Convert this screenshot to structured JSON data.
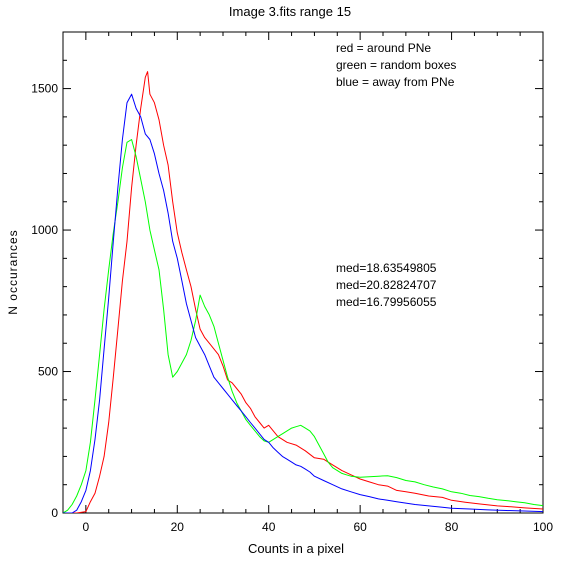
{
  "chart_data": {
    "type": "line",
    "title": "Image 3.fits   range 15",
    "xlabel": "Counts in a pixel",
    "ylabel": "N occurances",
    "xlim": [
      -5,
      100
    ],
    "ylim": [
      0,
      1700
    ],
    "xticks": [
      0,
      20,
      40,
      60,
      80,
      100
    ],
    "yticks": [
      0,
      500,
      1000,
      1500
    ],
    "grid": false,
    "legend_position": "top-right",
    "legend": [
      {
        "label": "red = around PNe",
        "color": "#ff0000"
      },
      {
        "label": "green = random boxes",
        "color": "#00ff00"
      },
      {
        "label": "blue = away from PNe",
        "color": "#0000ff"
      }
    ],
    "annotations": [
      {
        "text": "med=18.63549805",
        "color": "#ff0000"
      },
      {
        "text": "med=20.82824707",
        "color": "#00ff00"
      },
      {
        "text": "med=16.79956055",
        "color": "#0000ff"
      }
    ],
    "series": [
      {
        "color": "#ff0000",
        "points": [
          [
            -5,
            0
          ],
          [
            -2,
            0
          ],
          [
            0,
            5
          ],
          [
            1,
            40
          ],
          [
            2,
            70
          ],
          [
            3,
            130
          ],
          [
            4,
            200
          ],
          [
            5,
            320
          ],
          [
            6,
            480
          ],
          [
            7,
            650
          ],
          [
            8,
            820
          ],
          [
            9,
            960
          ],
          [
            10,
            1150
          ],
          [
            11,
            1300
          ],
          [
            12,
            1430
          ],
          [
            13,
            1540
          ],
          [
            13.5,
            1560
          ],
          [
            14,
            1480
          ],
          [
            15,
            1450
          ],
          [
            16,
            1390
          ],
          [
            17,
            1300
          ],
          [
            18,
            1230
          ],
          [
            19,
            1100
          ],
          [
            20,
            990
          ],
          [
            21,
            920
          ],
          [
            22,
            860
          ],
          [
            23,
            800
          ],
          [
            24,
            720
          ],
          [
            25,
            650
          ],
          [
            26,
            620
          ],
          [
            27,
            600
          ],
          [
            28,
            580
          ],
          [
            29,
            560
          ],
          [
            30,
            520
          ],
          [
            31,
            470
          ],
          [
            32,
            460
          ],
          [
            33,
            440
          ],
          [
            34,
            420
          ],
          [
            35,
            390
          ],
          [
            36,
            370
          ],
          [
            37,
            340
          ],
          [
            38,
            320
          ],
          [
            39,
            300
          ],
          [
            40,
            310
          ],
          [
            41,
            290
          ],
          [
            42,
            270
          ],
          [
            44,
            250
          ],
          [
            46,
            240
          ],
          [
            48,
            220
          ],
          [
            50,
            195
          ],
          [
            52,
            190
          ],
          [
            54,
            170
          ],
          [
            56,
            150
          ],
          [
            58,
            135
          ],
          [
            60,
            120
          ],
          [
            62,
            110
          ],
          [
            64,
            100
          ],
          [
            66,
            95
          ],
          [
            68,
            80
          ],
          [
            70,
            75
          ],
          [
            72,
            70
          ],
          [
            75,
            60
          ],
          [
            78,
            55
          ],
          [
            80,
            45
          ],
          [
            83,
            38
          ],
          [
            86,
            32
          ],
          [
            90,
            25
          ],
          [
            93,
            22
          ],
          [
            96,
            18
          ],
          [
            100,
            14
          ]
        ]
      },
      {
        "color": "#00ff00",
        "points": [
          [
            -5,
            0
          ],
          [
            -4,
            10
          ],
          [
            -3,
            30
          ],
          [
            -2,
            60
          ],
          [
            -1,
            100
          ],
          [
            0,
            150
          ],
          [
            1,
            250
          ],
          [
            2,
            400
          ],
          [
            3,
            560
          ],
          [
            4,
            720
          ],
          [
            5,
            860
          ],
          [
            6,
            990
          ],
          [
            7,
            1100
          ],
          [
            8,
            1220
          ],
          [
            9,
            1310
          ],
          [
            10,
            1320
          ],
          [
            11,
            1260
          ],
          [
            12,
            1180
          ],
          [
            13,
            1100
          ],
          [
            14,
            1000
          ],
          [
            15,
            930
          ],
          [
            16,
            860
          ],
          [
            17,
            720
          ],
          [
            18,
            560
          ],
          [
            19,
            480
          ],
          [
            20,
            500
          ],
          [
            21,
            530
          ],
          [
            22,
            560
          ],
          [
            23,
            610
          ],
          [
            24,
            680
          ],
          [
            25,
            770
          ],
          [
            26,
            730
          ],
          [
            27,
            700
          ],
          [
            28,
            660
          ],
          [
            29,
            600
          ],
          [
            30,
            540
          ],
          [
            31,
            480
          ],
          [
            32,
            430
          ],
          [
            33,
            390
          ],
          [
            34,
            360
          ],
          [
            35,
            330
          ],
          [
            36,
            310
          ],
          [
            37,
            290
          ],
          [
            38,
            270
          ],
          [
            39,
            255
          ],
          [
            40,
            250
          ],
          [
            41,
            260
          ],
          [
            42,
            270
          ],
          [
            43,
            280
          ],
          [
            44,
            290
          ],
          [
            45,
            300
          ],
          [
            46,
            305
          ],
          [
            47,
            310
          ],
          [
            48,
            300
          ],
          [
            49,
            290
          ],
          [
            50,
            270
          ],
          [
            51,
            240
          ],
          [
            52,
            210
          ],
          [
            53,
            180
          ],
          [
            54,
            160
          ],
          [
            55,
            150
          ],
          [
            56,
            140
          ],
          [
            57,
            135
          ],
          [
            58,
            130
          ],
          [
            59,
            128
          ],
          [
            60,
            126
          ],
          [
            62,
            128
          ],
          [
            64,
            130
          ],
          [
            66,
            132
          ],
          [
            68,
            125
          ],
          [
            70,
            115
          ],
          [
            72,
            110
          ],
          [
            74,
            100
          ],
          [
            76,
            92
          ],
          [
            78,
            85
          ],
          [
            80,
            75
          ],
          [
            82,
            70
          ],
          [
            84,
            62
          ],
          [
            86,
            58
          ],
          [
            88,
            52
          ],
          [
            90,
            47
          ],
          [
            92,
            44
          ],
          [
            94,
            40
          ],
          [
            96,
            36
          ],
          [
            98,
            30
          ],
          [
            100,
            26
          ]
        ]
      },
      {
        "color": "#0000ff",
        "points": [
          [
            -5,
            0
          ],
          [
            -3,
            0
          ],
          [
            -2,
            10
          ],
          [
            -1,
            40
          ],
          [
            0,
            80
          ],
          [
            1,
            150
          ],
          [
            2,
            260
          ],
          [
            3,
            400
          ],
          [
            4,
            580
          ],
          [
            5,
            760
          ],
          [
            6,
            960
          ],
          [
            7,
            1150
          ],
          [
            8,
            1320
          ],
          [
            9,
            1450
          ],
          [
            10,
            1480
          ],
          [
            11,
            1430
          ],
          [
            12,
            1400
          ],
          [
            13,
            1340
          ],
          [
            14,
            1320
          ],
          [
            15,
            1270
          ],
          [
            16,
            1200
          ],
          [
            17,
            1140
          ],
          [
            18,
            1060
          ],
          [
            19,
            960
          ],
          [
            20,
            900
          ],
          [
            21,
            820
          ],
          [
            22,
            740
          ],
          [
            23,
            680
          ],
          [
            24,
            620
          ],
          [
            25,
            590
          ],
          [
            26,
            560
          ],
          [
            27,
            520
          ],
          [
            28,
            480
          ],
          [
            29,
            460
          ],
          [
            30,
            440
          ],
          [
            31,
            420
          ],
          [
            32,
            400
          ],
          [
            33,
            380
          ],
          [
            34,
            360
          ],
          [
            35,
            340
          ],
          [
            36,
            320
          ],
          [
            37,
            300
          ],
          [
            38,
            280
          ],
          [
            39,
            260
          ],
          [
            40,
            250
          ],
          [
            41,
            230
          ],
          [
            42,
            215
          ],
          [
            43,
            200
          ],
          [
            44,
            190
          ],
          [
            45,
            180
          ],
          [
            46,
            170
          ],
          [
            47,
            165
          ],
          [
            48,
            155
          ],
          [
            49,
            145
          ],
          [
            50,
            130
          ],
          [
            52,
            115
          ],
          [
            54,
            100
          ],
          [
            56,
            85
          ],
          [
            58,
            75
          ],
          [
            60,
            65
          ],
          [
            62,
            58
          ],
          [
            64,
            50
          ],
          [
            66,
            45
          ],
          [
            68,
            40
          ],
          [
            70,
            35
          ],
          [
            72,
            30
          ],
          [
            75,
            25
          ],
          [
            78,
            20
          ],
          [
            80,
            17
          ],
          [
            84,
            14
          ],
          [
            88,
            11
          ],
          [
            92,
            9
          ],
          [
            96,
            7
          ],
          [
            100,
            5
          ]
        ]
      }
    ]
  }
}
